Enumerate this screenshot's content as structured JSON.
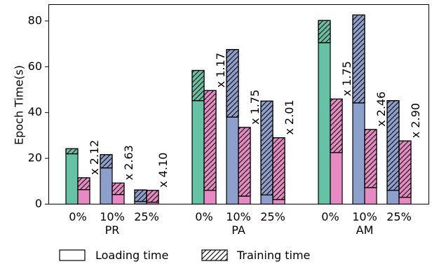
{
  "colors": {
    "full": "#66c2a5",
    "sampled": "#8da0cb",
    "baseline": "#e78ac3"
  },
  "chart_data": {
    "type": "bar",
    "title": "",
    "xlabel": "",
    "ylabel": "Epoch Time(s)",
    "ylim": [
      0,
      87
    ],
    "yticks": [
      0,
      20,
      40,
      60,
      80
    ],
    "grid": false,
    "legend_position": "bottom",
    "legend": [
      {
        "label": "Loading time",
        "pattern": "none"
      },
      {
        "label": "Training time",
        "pattern": "hatch"
      }
    ],
    "stacked_components": [
      "Loading time",
      "Training time"
    ],
    "groups": [
      {
        "name": "PR",
        "categories": [
          {
            "label": "0%",
            "left": {
              "color": "full",
              "loading": 22.0,
              "training": 2.2
            },
            "right": {
              "color": "baseline",
              "loading": 6.3,
              "training": 5.2
            },
            "annotation": "x 2.12"
          },
          {
            "label": "10%",
            "left": {
              "color": "sampled",
              "loading": 15.8,
              "training": 5.8
            },
            "right": {
              "color": "baseline",
              "loading": 4.2,
              "training": 5.0
            },
            "annotation": "x 2.63"
          },
          {
            "label": "25%",
            "left": {
              "color": "sampled",
              "loading": 1.2,
              "training": 5.0
            },
            "right": {
              "color": "baseline",
              "loading": 0.8,
              "training": 5.2
            },
            "annotation": "x 4.10"
          }
        ]
      },
      {
        "name": "PA",
        "categories": [
          {
            "label": "0%",
            "left": {
              "color": "full",
              "loading": 45.2,
              "training": 13.2
            },
            "right": {
              "color": "baseline",
              "loading": 6.0,
              "training": 43.6
            },
            "annotation": "x 1.17"
          },
          {
            "label": "10%",
            "left": {
              "color": "sampled",
              "loading": 38.0,
              "training": 29.5
            },
            "right": {
              "color": "baseline",
              "loading": 3.5,
              "training": 30.0
            },
            "annotation": "x 1.75"
          },
          {
            "label": "25%",
            "left": {
              "color": "sampled",
              "loading": 4.0,
              "training": 41.0
            },
            "right": {
              "color": "baseline",
              "loading": 2.0,
              "training": 27.0
            },
            "annotation": "x 2.01"
          }
        ]
      },
      {
        "name": "AM",
        "categories": [
          {
            "label": "0%",
            "left": {
              "color": "full",
              "loading": 70.5,
              "training": 9.7
            },
            "right": {
              "color": "baseline",
              "loading": 22.5,
              "training": 23.4
            },
            "annotation": "x 1.75"
          },
          {
            "label": "10%",
            "left": {
              "color": "sampled",
              "loading": 44.2,
              "training": 38.4
            },
            "right": {
              "color": "baseline",
              "loading": 7.2,
              "training": 25.4
            },
            "annotation": "x 2.46"
          },
          {
            "label": "25%",
            "left": {
              "color": "sampled",
              "loading": 6.0,
              "training": 39.2
            },
            "right": {
              "color": "baseline",
              "loading": 3.0,
              "training": 24.6
            },
            "annotation": "x 2.90"
          }
        ]
      }
    ]
  }
}
